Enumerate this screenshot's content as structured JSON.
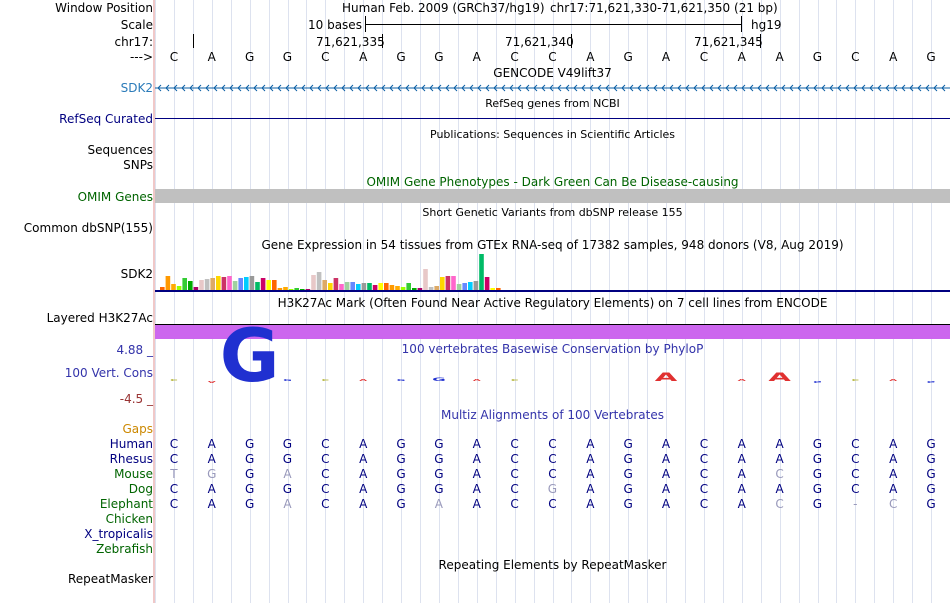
{
  "header": {
    "window_position_label": "Window Position",
    "scale_label": "Scale",
    "chrom_label": "chr17:",
    "strand_label": "--->",
    "assembly_text": "Human Feb. 2009 (GRCh37/hg19)",
    "position_text": "chr17:71,621,330-71,621,350 (21 bp)",
    "scale_text": "10 bases",
    "scale_db": "hg19",
    "ticks": [
      "71,621,335",
      "71,621,340",
      "71,621,345"
    ]
  },
  "sequence": [
    "C",
    "A",
    "G",
    "G",
    "C",
    "A",
    "G",
    "G",
    "A",
    "C",
    "C",
    "A",
    "G",
    "A",
    "C",
    "A",
    "A",
    "G",
    "C",
    "A",
    "G"
  ],
  "tracks": {
    "gencode": {
      "title": "GENCODE V49lift37",
      "label": "SDK2"
    },
    "refseq": {
      "title": "RefSeq genes from NCBI",
      "label": "RefSeq Curated"
    },
    "publications": {
      "title": "Publications: Sequences in Scientific Articles",
      "label1": "Sequences",
      "label2": "SNPs"
    },
    "omim": {
      "title": "OMIM Gene Phenotypes - Dark Green Can Be Disease-causing",
      "label": "OMIM Genes"
    },
    "dbsnp": {
      "title": "Short Genetic Variants from dbSNP release 155",
      "label": "Common dbSNP(155)"
    },
    "gtex": {
      "title": "Gene Expression in 54 tissues from GTEx RNA-seq of 17382 samples, 948 donors (V8, Aug 2019)",
      "label": "SDK2",
      "values": [
        3,
        14,
        6,
        4,
        12,
        9,
        3,
        10,
        11,
        12,
        14,
        13,
        14,
        9,
        12,
        13,
        14,
        8,
        12,
        10,
        10,
        2,
        3,
        1,
        2,
        1,
        1,
        15,
        18,
        10,
        7,
        12,
        6,
        8,
        8,
        6,
        7,
        7,
        5,
        7,
        7,
        5,
        4,
        3,
        7,
        2,
        2,
        21,
        3,
        4,
        13,
        14,
        14,
        6,
        7,
        8,
        9,
        36,
        13,
        2,
        2
      ],
      "colors": [
        "#ff6600",
        "#ff9900",
        "#ffaa00",
        "#99ff00",
        "#33cc33",
        "#00aa00",
        "#aa0066",
        "#e8c8c8",
        "#c0c0c0",
        "#ddaa66",
        "#ffd700",
        "#cc3366",
        "#ff66cc",
        "#a0d0a0",
        "#6688ff",
        "#00ccff",
        "#999999",
        "#00bb66",
        "#cc0066",
        "#ffff00"
      ]
    },
    "h3k27ac": {
      "title": "H3K27Ac Mark (Often Found Near Active Regulatory Elements) on 7 cell lines from ENCODE",
      "label": "Layered H3K27Ac",
      "color": "#cc66ee"
    },
    "phylop": {
      "title": "100 vertebrates Basewise Conservation by PhyloP",
      "label": "100 Vert. Cons",
      "max_label": "4.88 _",
      "min_label": "-4.5 _",
      "scores": [
        0.4,
        0.3,
        4.0,
        0.2,
        0.5,
        0.2,
        0.3,
        0.9,
        0.5,
        0.4,
        0,
        0,
        0,
        1.6,
        0,
        0.6,
        1.6,
        0.2,
        0.5,
        0.4,
        0.4
      ],
      "negative": [
        false,
        true,
        false,
        false,
        false,
        false,
        false,
        false,
        false,
        false,
        false,
        false,
        false,
        false,
        false,
        false,
        false,
        true,
        false,
        false,
        true
      ]
    },
    "multiz": {
      "title": "Multiz Alignments of 100 Vertebrates",
      "gaps_label": "Gaps",
      "species": [
        {
          "name": "Human",
          "color": "#000080",
          "bases": [
            "C",
            "A",
            "G",
            "G",
            "C",
            "A",
            "G",
            "G",
            "A",
            "C",
            "C",
            "A",
            "G",
            "A",
            "C",
            "A",
            "A",
            "G",
            "C",
            "A",
            "G"
          ],
          "faded": []
        },
        {
          "name": "Rhesus",
          "color": "#000080",
          "bases": [
            "C",
            "A",
            "G",
            "G",
            "C",
            "A",
            "G",
            "G",
            "A",
            "C",
            "C",
            "A",
            "G",
            "A",
            "C",
            "A",
            "A",
            "G",
            "C",
            "A",
            "G"
          ],
          "faded": []
        },
        {
          "name": "Mouse",
          "color": "#006400",
          "bases": [
            "T",
            "G",
            "G",
            "A",
            "C",
            "A",
            "G",
            "G",
            "A",
            "C",
            "C",
            "A",
            "G",
            "A",
            "C",
            "A",
            "C",
            "G",
            "C",
            "A",
            "G"
          ],
          "faded": [
            0,
            1,
            3,
            16
          ]
        },
        {
          "name": "Dog",
          "color": "#006400",
          "bases": [
            "C",
            "A",
            "G",
            "G",
            "C",
            "A",
            "G",
            "G",
            "A",
            "C",
            "G",
            "A",
            "G",
            "A",
            "C",
            "A",
            "A",
            "G",
            "C",
            "A",
            "G"
          ],
          "faded": [
            10
          ]
        },
        {
          "name": "Elephant",
          "color": "#006400",
          "bases": [
            "C",
            "A",
            "G",
            "A",
            "C",
            "A",
            "G",
            "A",
            "A",
            "C",
            "C",
            "A",
            "G",
            "A",
            "C",
            "A",
            "C",
            "G",
            "-",
            "C",
            "G"
          ],
          "faded": [
            3,
            7,
            16,
            18,
            19
          ]
        },
        {
          "name": "Chicken",
          "color": "#006400",
          "bases": [],
          "faded": []
        },
        {
          "name": "X_tropicalis",
          "color": "#000080",
          "bases": [],
          "faded": []
        },
        {
          "name": "Zebrafish",
          "color": "#006400",
          "bases": [],
          "faded": []
        }
      ]
    },
    "rmsk": {
      "title": "Repeating Elements by RepeatMasker",
      "label": "RepeatMasker"
    }
  },
  "colors": {
    "navy": "#000080",
    "dark_green": "#006400",
    "gencode_blue": "#0b5fa5",
    "gaps_orange": "#cc8800",
    "omim_bar": "#c0c0c0",
    "phylop_blue": "#3333aa",
    "phylop_red": "#cc3333",
    "gencode_label": "#2b7bb9"
  }
}
